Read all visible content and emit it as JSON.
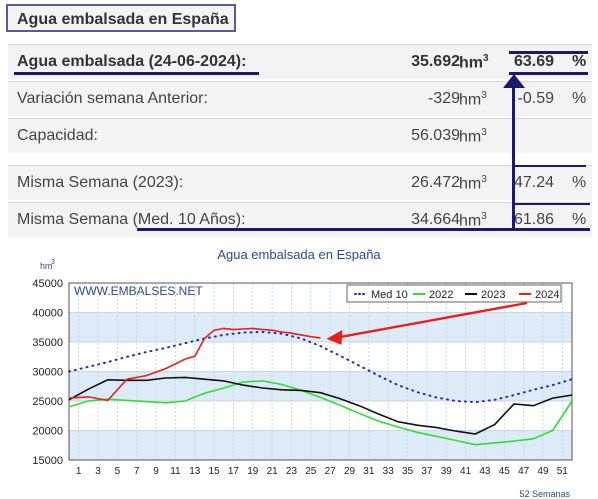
{
  "header": {
    "title": "Agua embalsada en España"
  },
  "summary_rows": [
    {
      "label": "Agua embalsada (24-06-2024):",
      "value": "35.692",
      "unit": "hm",
      "unit_sup": "3",
      "pct": "63.69",
      "pct_sign": "%"
    },
    {
      "label": "Variación semana Anterior:",
      "value": "-329",
      "unit": "hm",
      "unit_sup": "3",
      "pct": "-0.59",
      "pct_sign": "%"
    },
    {
      "label": "Capacidad:",
      "value": "56.039",
      "unit": "hm",
      "unit_sup": "3",
      "pct": "",
      "pct_sign": ""
    },
    {
      "label": "Misma Semana (2023):",
      "value": "26.472",
      "unit": "hm",
      "unit_sup": "3",
      "pct": "47.24",
      "pct_sign": "%"
    },
    {
      "label": "Misma Semana (Med. 10 Años):",
      "value": "34.664",
      "unit": "hm",
      "unit_sup": "3",
      "pct": "61.86",
      "pct_sign": "%"
    }
  ],
  "annotation_color": "#1d1a6e",
  "chart_data": {
    "type": "line",
    "title": "Agua embalsada en España",
    "ylabel": "hm",
    "ylabel_sup": "3",
    "xlabel": "52 Semanas",
    "watermark": "WWW.EMBALSES.NET",
    "ylim": [
      15000,
      45000
    ],
    "y_ticks": [
      15000,
      20000,
      25000,
      30000,
      35000,
      40000,
      45000
    ],
    "x_ticks": [
      1,
      3,
      5,
      7,
      9,
      11,
      13,
      15,
      17,
      19,
      21,
      23,
      25,
      27,
      29,
      31,
      33,
      35,
      37,
      39,
      41,
      43,
      45,
      47,
      49,
      51
    ],
    "xlim": [
      0,
      52
    ],
    "grid": true,
    "legend_position": "top-right",
    "arrow_color": "#e8201c",
    "series": [
      {
        "name": "Med 10",
        "color": "#2a2ab0",
        "style": "dotted",
        "x": [
          0,
          2,
          4,
          6,
          8,
          10,
          12,
          14,
          16,
          18,
          20,
          22,
          24,
          26,
          28,
          30,
          32,
          34,
          36,
          38,
          40,
          42,
          44,
          46,
          48,
          50,
          52
        ],
        "y": [
          30000,
          30800,
          31600,
          32500,
          33300,
          34000,
          34800,
          35600,
          36200,
          36600,
          36700,
          36400,
          35600,
          34300,
          32700,
          31000,
          29300,
          27700,
          26500,
          25600,
          25000,
          24800,
          25200,
          26000,
          26900,
          27700,
          28700
        ]
      },
      {
        "name": "2022",
        "color": "#33dd33",
        "style": "solid",
        "x": [
          0,
          2,
          4,
          6,
          8,
          10,
          12,
          14,
          16,
          18,
          20,
          22,
          24,
          26,
          28,
          30,
          32,
          34,
          36,
          38,
          40,
          42,
          44,
          46,
          48,
          50,
          52
        ],
        "y": [
          24000,
          25000,
          25300,
          25100,
          24900,
          24700,
          25000,
          26300,
          27200,
          28200,
          28400,
          27800,
          26800,
          25600,
          24300,
          22900,
          21600,
          20600,
          19700,
          19000,
          18300,
          17600,
          17900,
          18200,
          18600,
          20000,
          25000
        ]
      },
      {
        "name": "2023",
        "color": "#111111",
        "style": "solid",
        "x": [
          0,
          2,
          4,
          6,
          8,
          10,
          12,
          14,
          16,
          18,
          20,
          22,
          24,
          26,
          28,
          30,
          32,
          34,
          36,
          38,
          40,
          42,
          44,
          46,
          48,
          50,
          52
        ],
        "y": [
          25200,
          27000,
          28600,
          28500,
          28500,
          28900,
          29000,
          28700,
          28400,
          27700,
          27200,
          26900,
          26800,
          26400,
          25400,
          24200,
          22800,
          21500,
          20900,
          20500,
          19900,
          19400,
          21000,
          24500,
          24200,
          25500,
          26000
        ]
      },
      {
        "name": "2024",
        "color": "#e8201c",
        "style": "solid",
        "x": [
          0,
          2,
          4,
          6,
          8,
          10,
          12,
          13,
          14,
          15,
          16,
          17,
          18,
          19,
          20,
          21,
          22,
          23,
          24,
          25,
          26
        ],
        "y": [
          25500,
          25700,
          25100,
          28700,
          29300,
          30500,
          32100,
          32600,
          35600,
          37000,
          37300,
          37100,
          37200,
          37300,
          37100,
          37000,
          36700,
          36500,
          36200,
          35900,
          35692
        ]
      }
    ]
  }
}
